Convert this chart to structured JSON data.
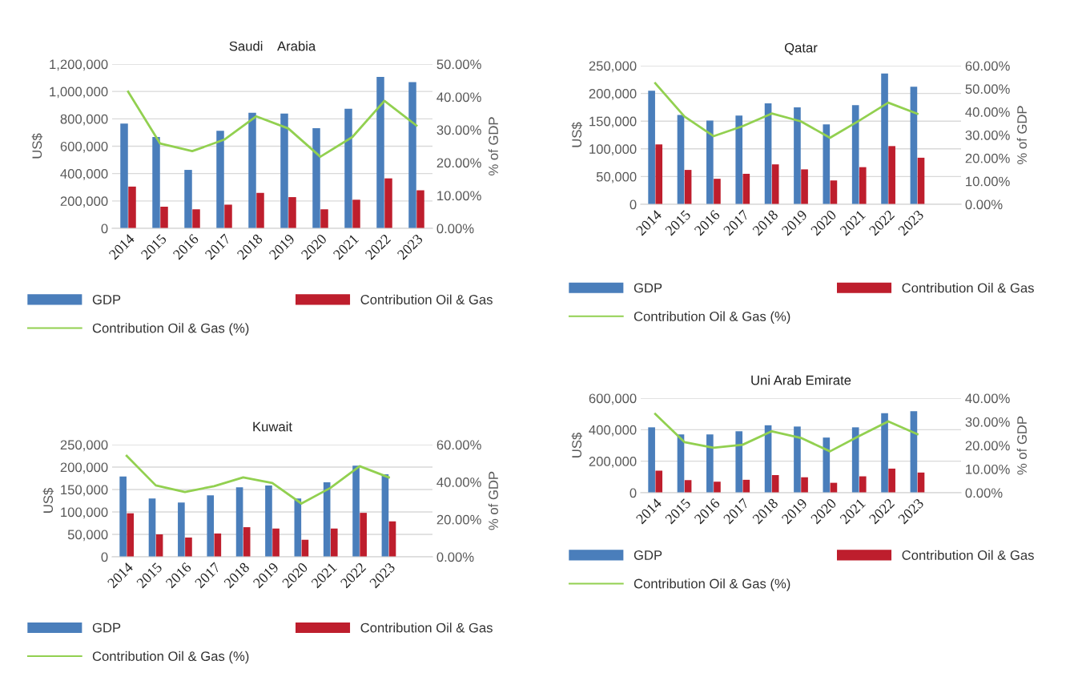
{
  "chart_data": [
    {
      "type": "bar",
      "title": "Saudi    Arabia",
      "ylabel": "US$",
      "y2label": "% of GDP",
      "categories": [
        "2014",
        "2015",
        "2016",
        "2017",
        "2018",
        "2019",
        "2020",
        "2021",
        "2022",
        "2023"
      ],
      "series": [
        {
          "name": "GDP",
          "color": "#4a7ebb",
          "values": [
            766000,
            668000,
            427000,
            713000,
            845000,
            838000,
            732000,
            874000,
            1107000,
            1068000
          ]
        },
        {
          "name": "Contribution Oil & Gas",
          "color": "#be1e2d",
          "values": [
            305000,
            158000,
            139000,
            173000,
            259000,
            228000,
            139000,
            209000,
            365000,
            278000
          ]
        },
        {
          "name": "Contribution Oil & Gas (%)",
          "type": "line",
          "axis": "y2",
          "color": "#92d050",
          "values": [
            41.6,
            25.8,
            23.5,
            27.0,
            34.1,
            30.4,
            21.8,
            27.8,
            38.8,
            31.3
          ]
        }
      ],
      "ylim": [
        0,
        1200000
      ],
      "yticks": [
        {
          "value": 0,
          "label": "0"
        },
        {
          "value": 200000,
          "label": "200,000"
        },
        {
          "value": 400000,
          "label": "400,000"
        },
        {
          "value": 600000,
          "label": "600,000"
        },
        {
          "value": 800000,
          "label": "800,000"
        },
        {
          "value": 1000000,
          "label": "1,000,000"
        },
        {
          "value": 1200000,
          "label": "1,200,000"
        }
      ],
      "y2lim": [
        0,
        50
      ],
      "y2ticks": [
        {
          "value": 0,
          "label": "0.00%"
        },
        {
          "value": 10,
          "label": "10.00%"
        },
        {
          "value": 20,
          "label": "20.00%"
        },
        {
          "value": 30,
          "label": "30.00%"
        },
        {
          "value": 40,
          "label": "40.00%"
        },
        {
          "value": 50,
          "label": "50.00%"
        }
      ],
      "grid": "y",
      "legend": "bottom"
    },
    {
      "type": "bar",
      "title": "Qatar",
      "ylabel": "US$",
      "y2label": "% of GDP",
      "categories": [
        "2014",
        "2015",
        "2016",
        "2017",
        "2018",
        "2019",
        "2020",
        "2021",
        "2022",
        "2023"
      ],
      "series": [
        {
          "name": "GDP",
          "color": "#4a7ebb",
          "values": [
            205000,
            161000,
            151000,
            160000,
            182000,
            175000,
            144000,
            179000,
            236000,
            212000
          ]
        },
        {
          "name": "Contribution Oil & Gas",
          "color": "#be1e2d",
          "values": [
            108000,
            62000,
            46000,
            55000,
            72000,
            63000,
            43000,
            67000,
            105000,
            84000
          ]
        },
        {
          "name": "Contribution Oil & Gas (%)",
          "type": "line",
          "axis": "y2",
          "color": "#92d050",
          "values": [
            52.4,
            38.0,
            29.5,
            33.8,
            39.3,
            35.9,
            28.8,
            36.2,
            44.0,
            39.2
          ]
        }
      ],
      "ylim": [
        0,
        250000
      ],
      "yticks": [
        {
          "value": 0,
          "label": "0"
        },
        {
          "value": 50000,
          "label": "50,000"
        },
        {
          "value": 100000,
          "label": "100,000"
        },
        {
          "value": 150000,
          "label": "150,000"
        },
        {
          "value": 200000,
          "label": "200,000"
        },
        {
          "value": 250000,
          "label": "250,000"
        }
      ],
      "y2lim": [
        0,
        60
      ],
      "y2ticks": [
        {
          "value": 0,
          "label": "0.00%"
        },
        {
          "value": 10,
          "label": "10.00%"
        },
        {
          "value": 20,
          "label": "20.00%"
        },
        {
          "value": 30,
          "label": "30.00%"
        },
        {
          "value": 40,
          "label": "40.00%"
        },
        {
          "value": 50,
          "label": "50.00%"
        },
        {
          "value": 60,
          "label": "60.00%"
        }
      ],
      "grid": "y",
      "legend": "bottom"
    },
    {
      "type": "bar",
      "title": "Kuwait",
      "ylabel": "US$",
      "y2label": "% of GDP",
      "categories": [
        "2014",
        "2015",
        "2016",
        "2017",
        "2018",
        "2019",
        "2020",
        "2021",
        "2022",
        "2023"
      ],
      "series": [
        {
          "name": "GDP",
          "color": "#4a7ebb",
          "values": [
            179000,
            130000,
            121000,
            137000,
            155000,
            159000,
            130000,
            166000,
            203000,
            184000
          ]
        },
        {
          "name": "Contribution Oil & Gas",
          "color": "#be1e2d",
          "values": [
            97000,
            50000,
            43000,
            52000,
            66000,
            63000,
            38000,
            63000,
            98000,
            79000
          ]
        },
        {
          "name": "Contribution Oil & Gas (%)",
          "type": "line",
          "axis": "y2",
          "color": "#92d050",
          "values": [
            54.0,
            38.2,
            34.7,
            37.8,
            42.5,
            39.5,
            28.5,
            36.9,
            48.5,
            42.5
          ]
        }
      ],
      "ylim": [
        0,
        250000
      ],
      "yticks": [
        {
          "value": 0,
          "label": "0"
        },
        {
          "value": 50000,
          "label": "50,000"
        },
        {
          "value": 100000,
          "label": "100,000"
        },
        {
          "value": 150000,
          "label": "150,000"
        },
        {
          "value": 200000,
          "label": "200,000"
        },
        {
          "value": 250000,
          "label": "250,000"
        }
      ],
      "y2lim": [
        0,
        60
      ],
      "y2ticks": [
        {
          "value": 0,
          "label": "0.00%"
        },
        {
          "value": 20,
          "label": "20.00%"
        },
        {
          "value": 40,
          "label": "40.00%"
        },
        {
          "value": 60,
          "label": "60.00%"
        }
      ],
      "grid": "y",
      "legend": "bottom"
    },
    {
      "type": "bar",
      "title": "Uni Arab Emirate",
      "ylabel": "US$",
      "y2label": "% of GDP",
      "categories": [
        "2014",
        "2015",
        "2016",
        "2017",
        "2018",
        "2019",
        "2020",
        "2021",
        "2022",
        "2023"
      ],
      "series": [
        {
          "name": "GDP",
          "color": "#4a7ebb",
          "values": [
            415000,
            370000,
            370000,
            390000,
            428000,
            420000,
            350000,
            415000,
            505000,
            517000
          ]
        },
        {
          "name": "Contribution Oil & Gas",
          "color": "#be1e2d",
          "values": [
            140000,
            80000,
            70000,
            82000,
            112000,
            98000,
            63000,
            104000,
            153000,
            128000
          ]
        },
        {
          "name": "Contribution Oil & Gas (%)",
          "type": "line",
          "axis": "y2",
          "color": "#92d050",
          "values": [
            33.3,
            21.4,
            19.0,
            20.3,
            26.0,
            23.2,
            17.5,
            24.0,
            30.2,
            24.8
          ]
        }
      ],
      "ylim": [
        0,
        600000
      ],
      "yticks": [
        {
          "value": 0,
          "label": "0"
        },
        {
          "value": 200000,
          "label": "200,000"
        },
        {
          "value": 400000,
          "label": "400,000"
        },
        {
          "value": 600000,
          "label": "600,000"
        }
      ],
      "y2lim": [
        0,
        40
      ],
      "y2ticks": [
        {
          "value": 0,
          "label": "0.00%"
        },
        {
          "value": 10,
          "label": "10.00%"
        },
        {
          "value": 20,
          "label": "20.00%"
        },
        {
          "value": 30,
          "label": "30.00%"
        },
        {
          "value": 40,
          "label": "40.00%"
        }
      ],
      "grid": "y",
      "legend": "bottom"
    }
  ]
}
